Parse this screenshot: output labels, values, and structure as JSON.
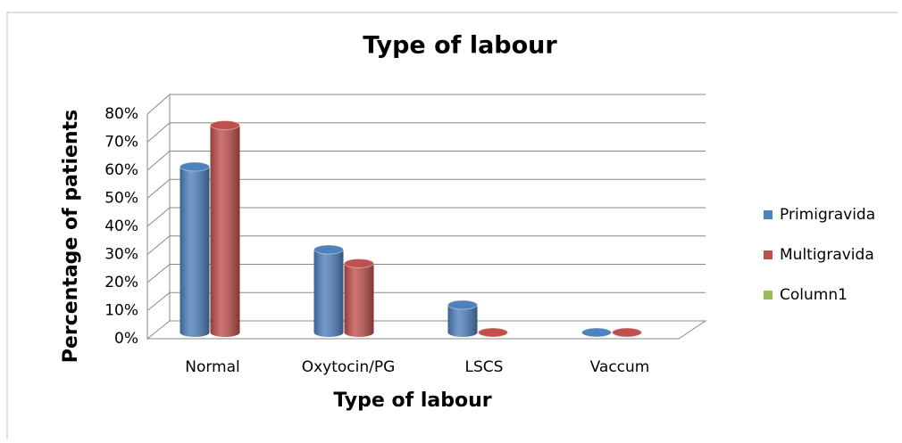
{
  "chart_data": {
    "type": "bar",
    "title": "Type of labour",
    "x_label": "Type of labour",
    "y_label": "Percentage of patients",
    "categories": [
      "Normal",
      "Oxytocin/PG",
      "LSCS",
      "Vaccum"
    ],
    "series": [
      {
        "name": "Primigravida",
        "color": "#4f81bd",
        "values": [
          60,
          30,
          10,
          0
        ]
      },
      {
        "name": "Multigravida",
        "color": "#c0504d",
        "values": [
          75,
          25,
          0,
          0
        ]
      },
      {
        "name": "Column1",
        "color": "#9bbb59",
        "values": [
          null,
          null,
          null,
          null
        ]
      }
    ],
    "ylim": [
      0,
      80
    ],
    "yticks": [
      {
        "value": 0,
        "label": "0%"
      },
      {
        "value": 10,
        "label": "10%"
      },
      {
        "value": 20,
        "label": "20%"
      },
      {
        "value": 30,
        "label": "30%"
      },
      {
        "value": 40,
        "label": "40%"
      },
      {
        "value": 50,
        "label": "50%"
      },
      {
        "value": 60,
        "label": "60%"
      },
      {
        "value": 70,
        "label": "70%"
      },
      {
        "value": 80,
        "label": "80%"
      }
    ],
    "grid": true,
    "legend": "right"
  }
}
